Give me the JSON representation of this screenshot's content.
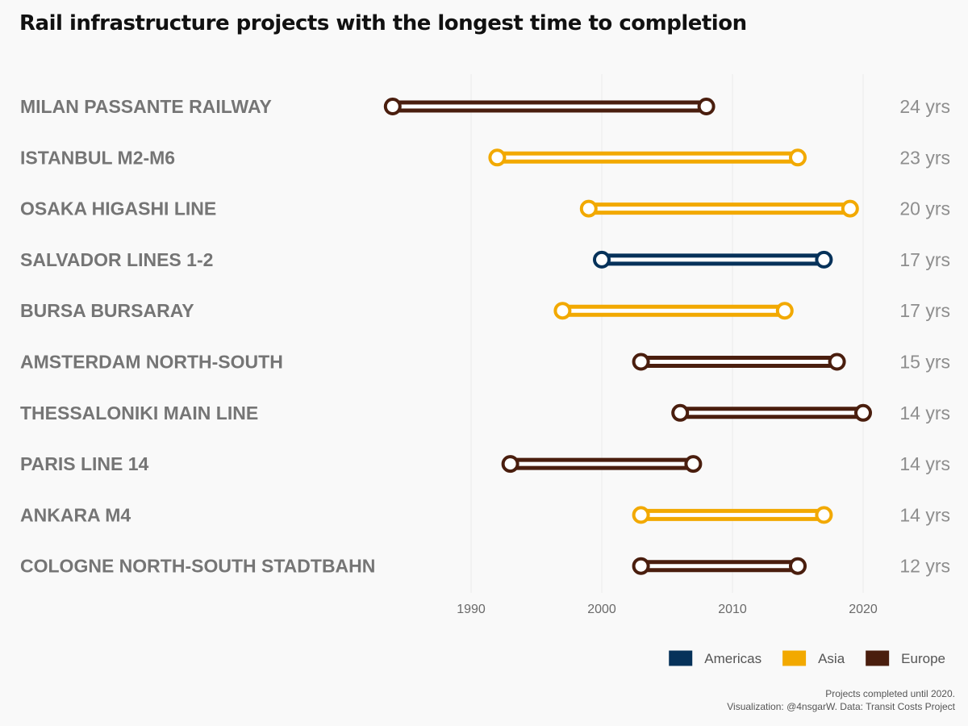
{
  "chart_data": {
    "type": "dumbbell",
    "title": "Rail infrastructure projects with the longest time to completion",
    "xlim": [
      1978,
      2022
    ],
    "x_ticks": [
      1990,
      2000,
      2010,
      2020
    ],
    "grid": true,
    "legend_position": "bottom-right",
    "legend": [
      {
        "name": "Americas",
        "color": "#06325a"
      },
      {
        "name": "Asia",
        "color": "#f2a900"
      },
      {
        "name": "Europe",
        "color": "#4a1e0e"
      }
    ],
    "projects": [
      {
        "name": "MILAN PASSANTE RAILWAY",
        "start": 1984,
        "end": 2008,
        "duration": "24 yrs",
        "region": "Europe"
      },
      {
        "name": "ISTANBUL M2-M6",
        "start": 1992,
        "end": 2015,
        "duration": "23 yrs",
        "region": "Asia"
      },
      {
        "name": "OSAKA HIGASHI LINE",
        "start": 1999,
        "end": 2019,
        "duration": "20 yrs",
        "region": "Asia"
      },
      {
        "name": "SALVADOR LINES 1-2",
        "start": 2000,
        "end": 2017,
        "duration": "17 yrs",
        "region": "Americas"
      },
      {
        "name": "BURSA BURSARAY",
        "start": 1997,
        "end": 2014,
        "duration": "17 yrs",
        "region": "Asia"
      },
      {
        "name": "AMSTERDAM NORTH-SOUTH",
        "start": 2003,
        "end": 2018,
        "duration": "15 yrs",
        "region": "Europe"
      },
      {
        "name": "THESSALONIKI MAIN LINE",
        "start": 2006,
        "end": 2020,
        "duration": "14 yrs",
        "region": "Europe"
      },
      {
        "name": "PARIS LINE 14",
        "start": 1993,
        "end": 2007,
        "duration": "14 yrs",
        "region": "Europe"
      },
      {
        "name": "ANKARA M4",
        "start": 2003,
        "end": 2017,
        "duration": "14 yrs",
        "region": "Asia"
      },
      {
        "name": "COLOGNE NORTH-SOUTH STADTBAHN",
        "start": 2003,
        "end": 2015,
        "duration": "12 yrs",
        "region": "Europe"
      }
    ]
  },
  "caption": {
    "line1": "Projects completed until 2020.",
    "line2": "Visualization: @4nsgarW. Data: Transit Costs Project"
  }
}
